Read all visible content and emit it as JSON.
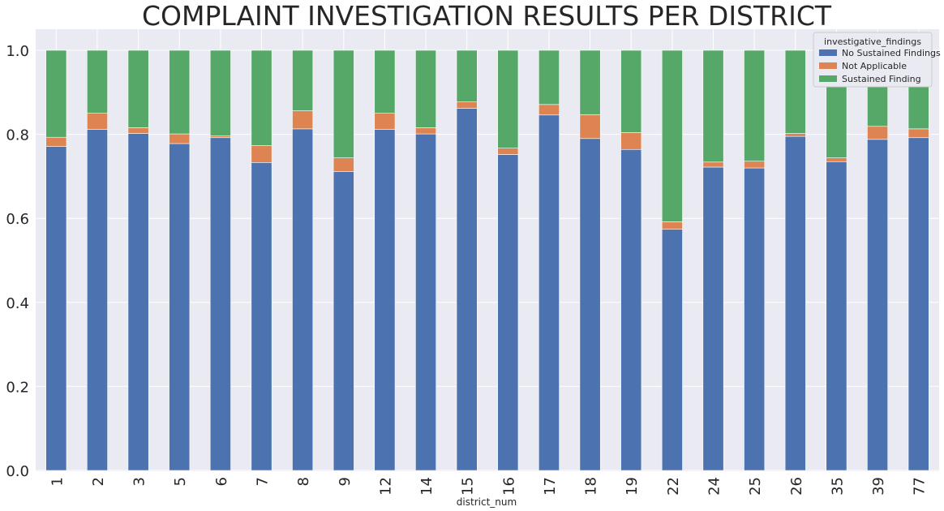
{
  "chart_data": {
    "type": "bar",
    "stacked": true,
    "title": "COMPLAINT INVESTIGATION RESULTS PER DISTRICT",
    "xlabel": "district_num",
    "ylabel": "",
    "ylim": [
      0,
      1.05
    ],
    "yticks": [
      "0.0",
      "0.2",
      "0.4",
      "0.6",
      "0.8",
      "1.0"
    ],
    "grid": true,
    "legend": {
      "title": "investigative_findings",
      "placement": "top-right"
    },
    "categories": [
      "1",
      "2",
      "3",
      "5",
      "6",
      "7",
      "8",
      "9",
      "12",
      "14",
      "15",
      "16",
      "17",
      "18",
      "19",
      "22",
      "24",
      "25",
      "26",
      "35",
      "39",
      "77"
    ],
    "series": [
      {
        "name": "No Sustained Findings",
        "color": "#4c72b0",
        "values": [
          0.771,
          0.812,
          0.802,
          0.778,
          0.792,
          0.733,
          0.813,
          0.711,
          0.812,
          0.801,
          0.862,
          0.752,
          0.846,
          0.79,
          0.764,
          0.574,
          0.722,
          0.72,
          0.795,
          0.735,
          0.788,
          0.792
        ]
      },
      {
        "name": "Not Applicable",
        "color": "#dd8452",
        "values": [
          0.022,
          0.038,
          0.014,
          0.023,
          0.004,
          0.04,
          0.043,
          0.033,
          0.038,
          0.015,
          0.015,
          0.015,
          0.025,
          0.057,
          0.04,
          0.018,
          0.012,
          0.016,
          0.007,
          0.009,
          0.031,
          0.021
        ]
      },
      {
        "name": "Sustained Finding",
        "color": "#55a868",
        "values": [
          0.207,
          0.15,
          0.184,
          0.199,
          0.204,
          0.227,
          0.144,
          0.256,
          0.15,
          0.184,
          0.123,
          0.233,
          0.129,
          0.153,
          0.196,
          0.408,
          0.266,
          0.264,
          0.198,
          0.256,
          0.181,
          0.187
        ]
      }
    ]
  }
}
